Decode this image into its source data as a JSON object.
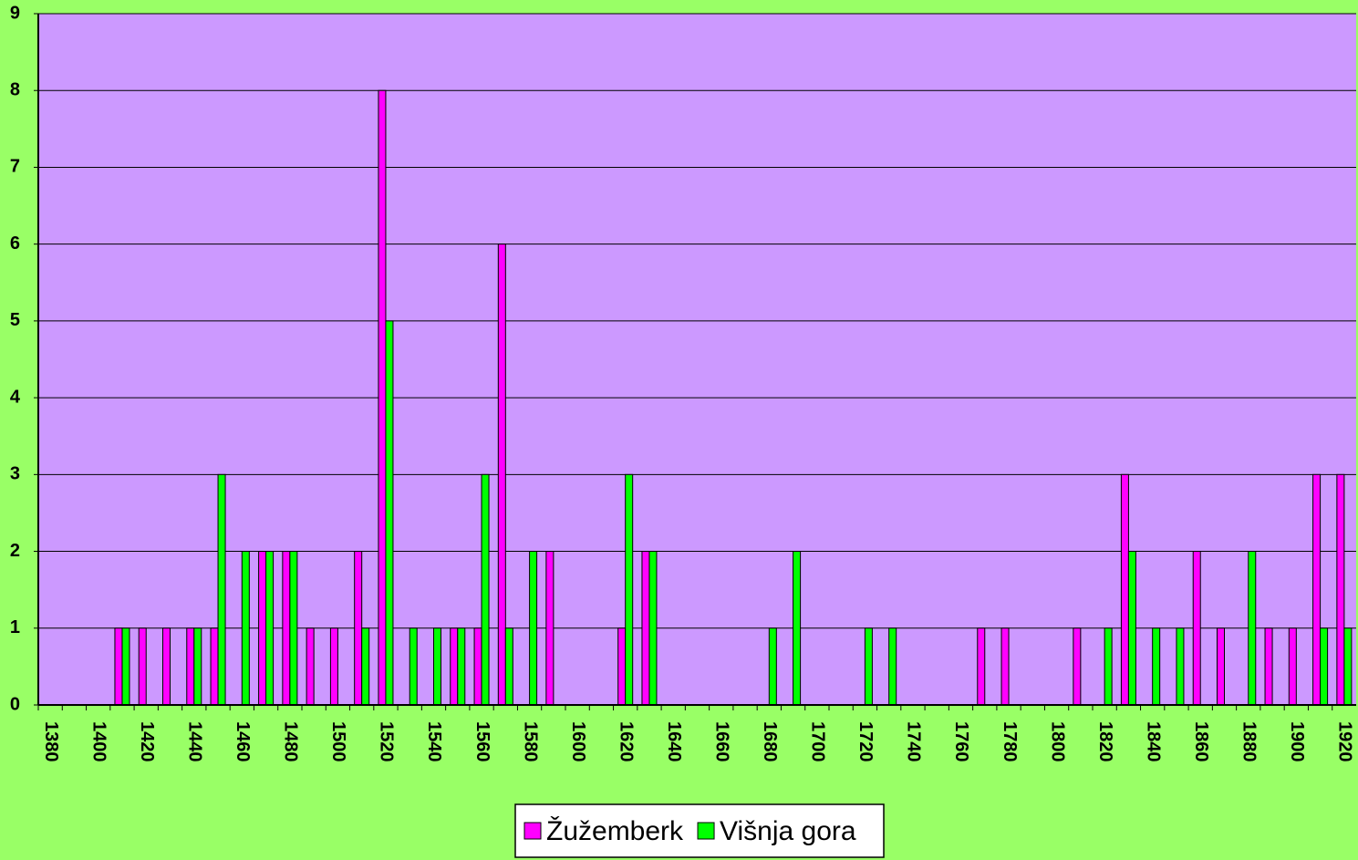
{
  "chart_data": {
    "type": "bar",
    "categories": [
      1380,
      null,
      1400,
      null,
      1420,
      null,
      1440,
      null,
      1460,
      null,
      1480,
      null,
      1500,
      null,
      1520,
      null,
      1540,
      null,
      1560,
      null,
      1580,
      null,
      1600,
      null,
      1620,
      null,
      1640,
      null,
      1660,
      null,
      1680,
      null,
      1700,
      null,
      1720,
      null,
      1740,
      null,
      1760,
      null,
      1780,
      null,
      1800,
      null,
      1820,
      null,
      1840,
      null,
      1860,
      null,
      1880,
      null,
      1900,
      null,
      1920
    ],
    "series": [
      {
        "name": "Žužemberk",
        "color": "#ff00ff",
        "values": [
          0,
          0,
          0,
          1,
          1,
          1,
          1,
          1,
          0,
          2,
          2,
          1,
          1,
          2,
          8,
          0,
          0,
          1,
          1,
          6,
          0,
          2,
          0,
          0,
          1,
          2,
          0,
          0,
          0,
          0,
          0,
          0,
          0,
          0,
          0,
          0,
          0,
          0,
          0,
          1,
          1,
          0,
          0,
          1,
          0,
          3,
          0,
          0,
          2,
          1,
          0,
          1,
          1,
          3,
          3
        ]
      },
      {
        "name": "Višnja gora",
        "color": "#00ff00",
        "values": [
          0,
          0,
          0,
          1,
          0,
          0,
          1,
          3,
          2,
          2,
          2,
          0,
          0,
          1,
          5,
          1,
          1,
          1,
          3,
          1,
          2,
          0,
          0,
          0,
          3,
          2,
          0,
          0,
          0,
          0,
          1,
          2,
          0,
          0,
          1,
          1,
          0,
          0,
          0,
          0,
          0,
          0,
          0,
          0,
          1,
          2,
          1,
          1,
          0,
          0,
          2,
          0,
          0,
          1,
          1
        ]
      }
    ],
    "ylim": [
      0,
      9
    ],
    "yticks": [
      0,
      1,
      2,
      3,
      4,
      5,
      6,
      7,
      8,
      9
    ],
    "grid": true,
    "legend": "bottom"
  }
}
